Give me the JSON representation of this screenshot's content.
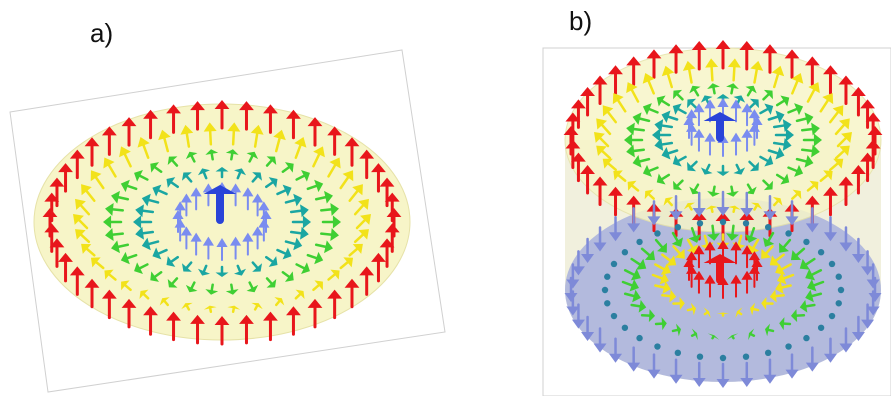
{
  "panels": [
    {
      "id": "a",
      "label": "a)"
    },
    {
      "id": "b",
      "label": "b)"
    }
  ],
  "colors": {
    "outer_ring": "#e8161b",
    "yellow_ring": "#f2e21a",
    "green_ring": "#3fcf33",
    "teal_ring": "#1aa6a2",
    "core_blue": "#2a44d8",
    "core_red": "#e8161b",
    "disk_fill": "#f7f5c8",
    "lower_disk_fill": "#9ea8dc"
  },
  "icons": [
    "arrow-field-skyrmion",
    "arrow-field-bobber"
  ]
}
